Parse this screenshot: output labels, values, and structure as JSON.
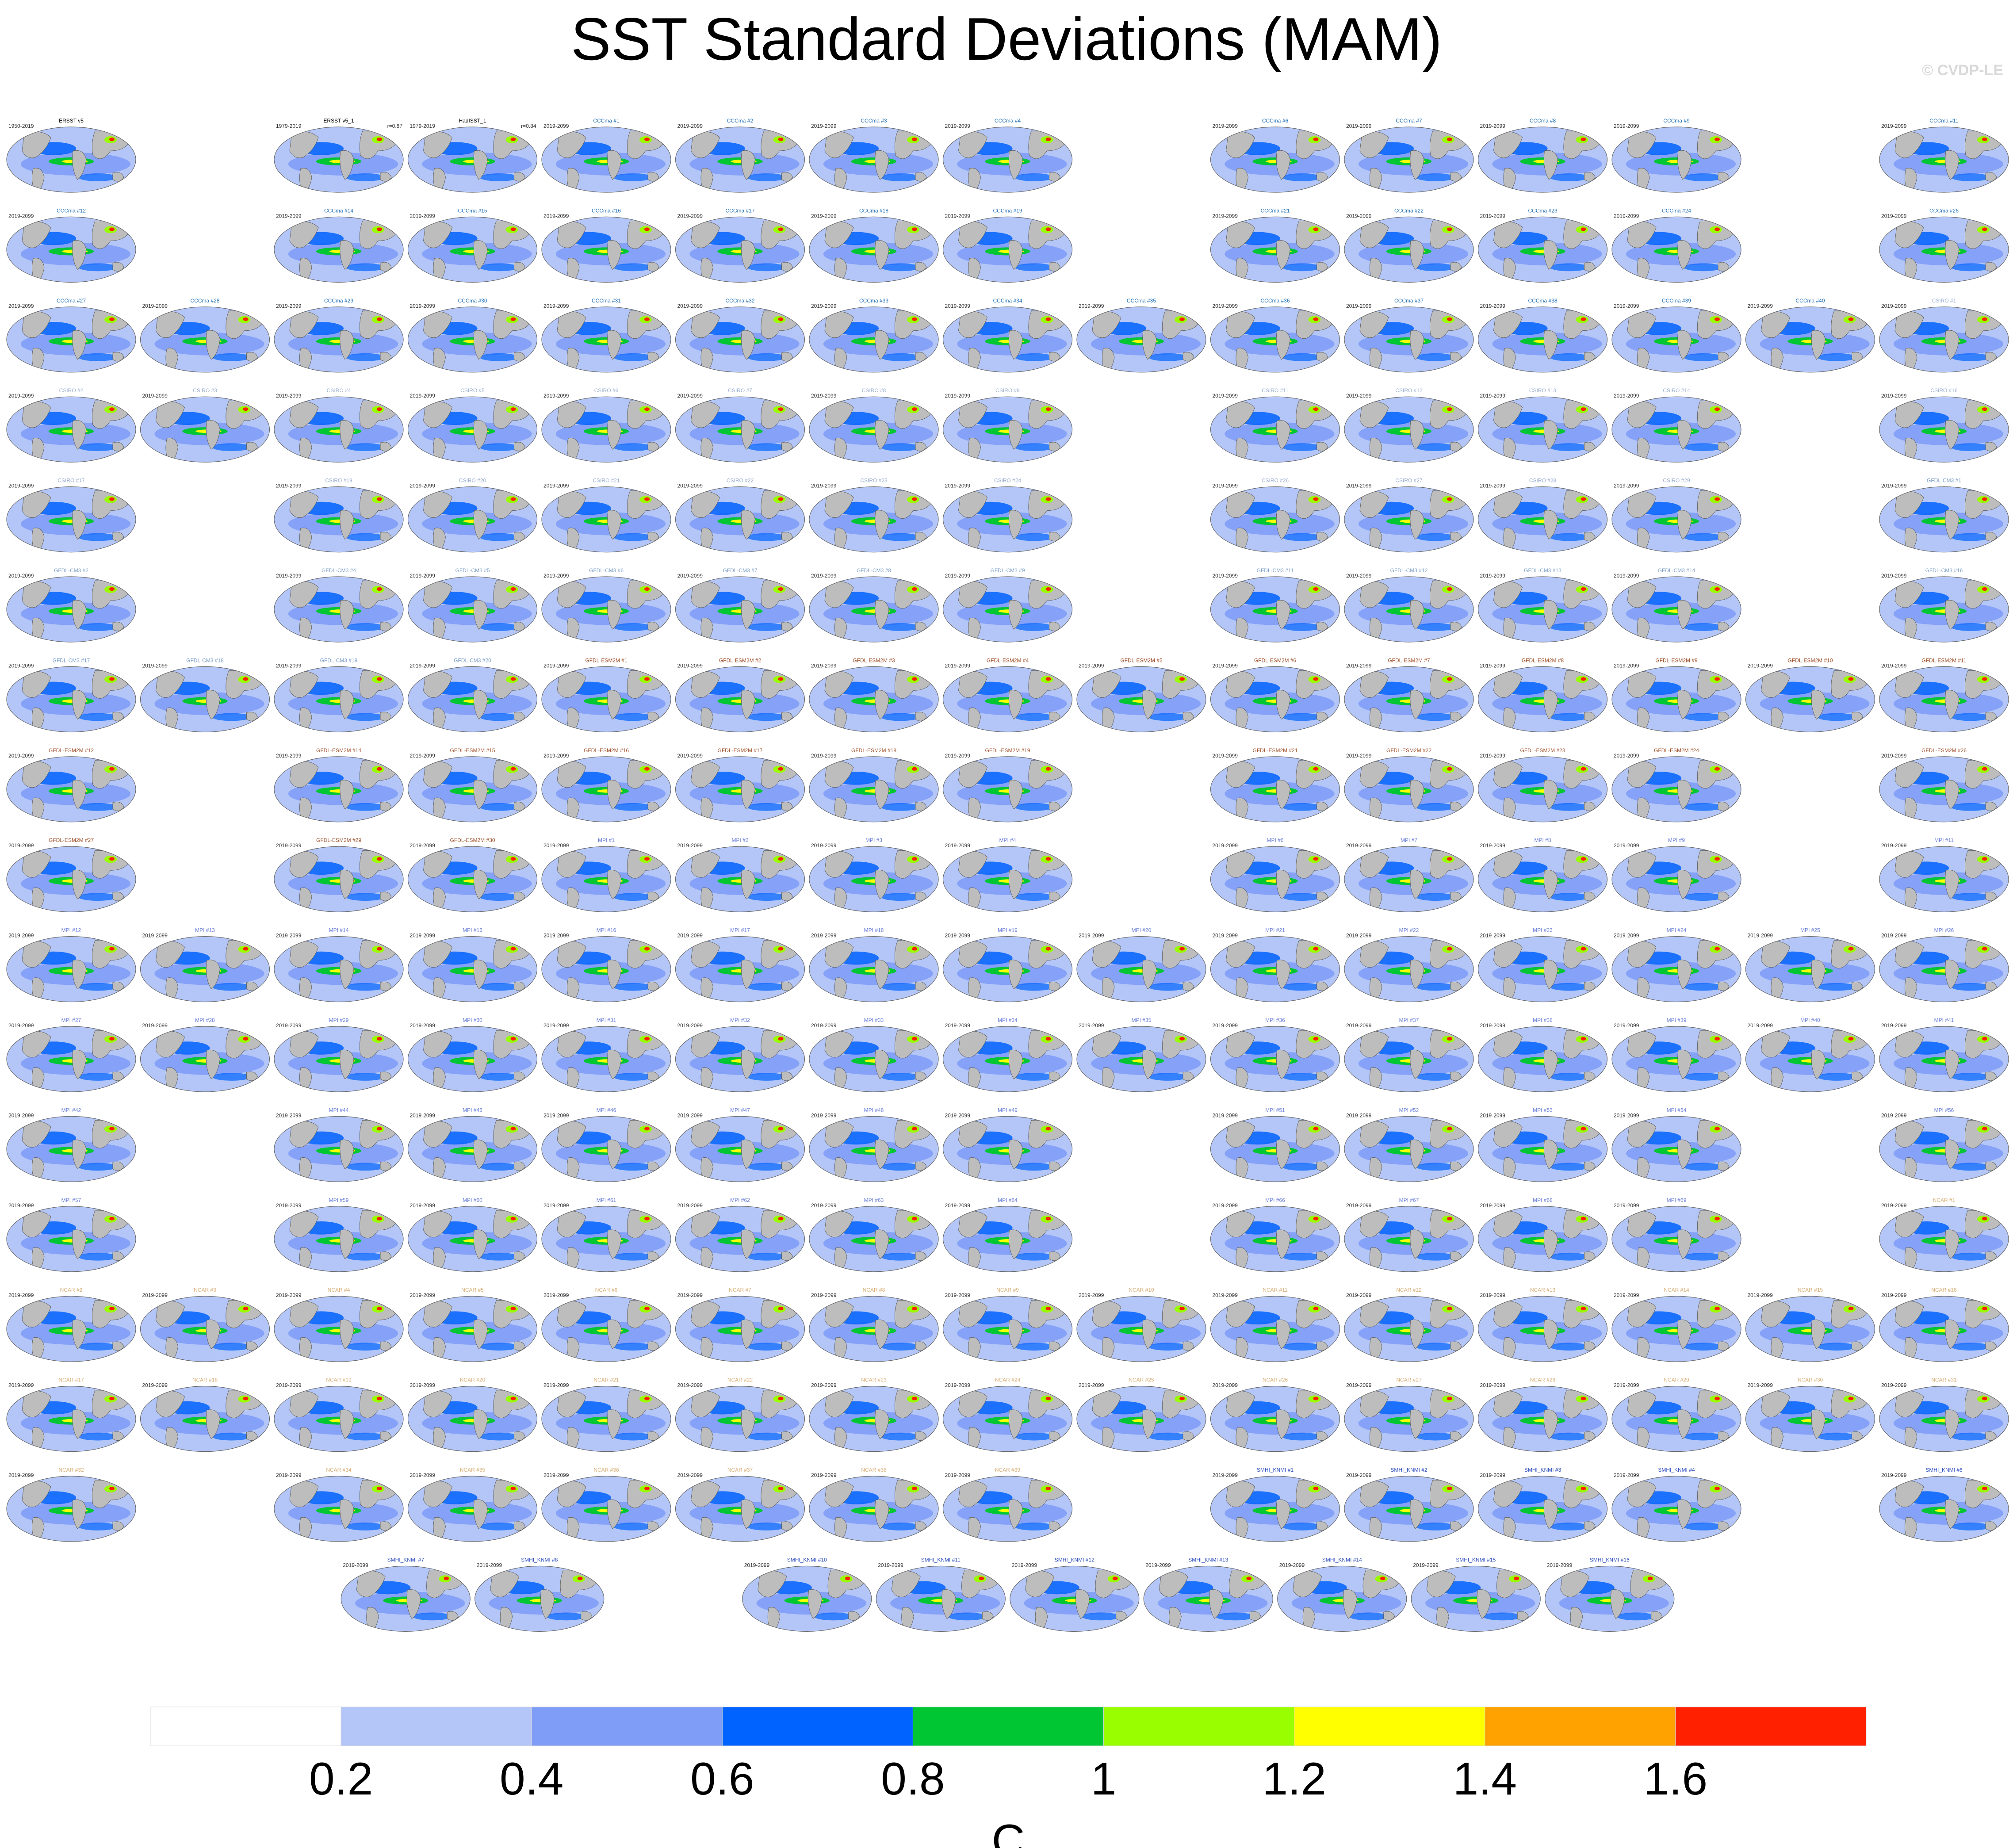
{
  "title": "SST Standard Deviations (MAM)",
  "copyright": "© CVDP-LE",
  "chart_data": {
    "type": "map-panel-grid",
    "title": "SST Standard Deviations (MAM)",
    "colorbar": {
      "units": "C",
      "tick_labels": [
        "0.2",
        "0.4",
        "0.6",
        "0.8",
        "1",
        "1.2",
        "1.4",
        "1.6"
      ],
      "levels": [
        0.2,
        0.4,
        0.6,
        0.8,
        1.0,
        1.2,
        1.4,
        1.6
      ],
      "colors": [
        "#ffffff",
        "#b3c6f7",
        "#7f9cf7",
        "#0062ff",
        "#00c634",
        "#99ff00",
        "#ffff00",
        "#ffa200",
        "#ff2000"
      ]
    },
    "land_color": "#bdbdbd",
    "rows": [
      [
        "ERSST v5",
        null,
        "ERSST v5_1",
        "HadISST_1",
        "CCCma #1",
        "CCCma #2",
        "CCCma #3",
        "CCCma #4",
        null,
        "CCCma #6",
        "CCCma #7",
        "CCCma #8",
        "CCCma #9",
        null,
        "CCCma #11"
      ],
      [
        "CCCma #12",
        null,
        "CCCma #14",
        "CCCma #15",
        "CCCma #16",
        "CCCma #17",
        "CCCma #18",
        "CCCma #19",
        null,
        "CCCma #21",
        "CCCma #22",
        "CCCma #23",
        "CCCma #24",
        null,
        "CCCma #26"
      ],
      [
        "CCCma #27",
        "CCCma #28",
        "CCCma #29",
        "CCCma #30",
        "CCCma #31",
        "CCCma #32",
        "CCCma #33",
        "CCCma #34",
        "CCCma #35",
        "CCCma #36",
        "CCCma #37",
        "CCCma #38",
        "CCCma #39",
        "CCCma #40",
        "CSIRO #1"
      ],
      [
        "CSIRO #2",
        "CSIRO #3",
        "CSIRO #4",
        "CSIRO #5",
        "CSIRO #6",
        "CSIRO #7",
        "CSIRO #8",
        "CSIRO #9",
        null,
        "CSIRO #11",
        "CSIRO #12",
        "CSIRO #13",
        "CSIRO #14",
        null,
        "CSIRO #16"
      ],
      [
        "CSIRO #17",
        null,
        "CSIRO #19",
        "CSIRO #20",
        "CSIRO #21",
        "CSIRO #22",
        "CSIRO #23",
        "CSIRO #24",
        null,
        "CSIRO #26",
        "CSIRO #27",
        "CSIRO #28",
        "CSIRO #29",
        null,
        "GFDL-CM3 #1"
      ],
      [
        "GFDL-CM3 #2",
        null,
        "GFDL-CM3 #4",
        "GFDL-CM3 #5",
        "GFDL-CM3 #6",
        "GFDL-CM3 #7",
        "GFDL-CM3 #8",
        "GFDL-CM3 #9",
        null,
        "GFDL-CM3 #11",
        "GFDL-CM3 #12",
        "GFDL-CM3 #13",
        "GFDL-CM3 #14",
        null,
        "GFDL-CM3 #16"
      ],
      [
        "GFDL-CM3 #17",
        "GFDL-CM3 #18",
        "GFDL-CM3 #19",
        "GFDL-CM3 #20",
        "GFDL-ESM2M #1",
        "GFDL-ESM2M #2",
        "GFDL-ESM2M #3",
        "GFDL-ESM2M #4",
        "GFDL-ESM2M #5",
        "GFDL-ESM2M #6",
        "GFDL-ESM2M #7",
        "GFDL-ESM2M #8",
        "GFDL-ESM2M #9",
        "GFDL-ESM2M #10",
        "GFDL-ESM2M #11"
      ],
      [
        "GFDL-ESM2M #12",
        null,
        "GFDL-ESM2M #14",
        "GFDL-ESM2M #15",
        "GFDL-ESM2M #16",
        "GFDL-ESM2M #17",
        "GFDL-ESM2M #18",
        "GFDL-ESM2M #19",
        null,
        "GFDL-ESM2M #21",
        "GFDL-ESM2M #22",
        "GFDL-ESM2M #23",
        "GFDL-ESM2M #24",
        null,
        "GFDL-ESM2M #26"
      ],
      [
        "GFDL-ESM2M #27",
        null,
        "GFDL-ESM2M #29",
        "GFDL-ESM2M #30",
        "MPI #1",
        "MPI #2",
        "MPI #3",
        "MPI #4",
        null,
        "MPI #6",
        "MPI #7",
        "MPI #8",
        "MPI #9",
        null,
        "MPI #11"
      ],
      [
        "MPI #12",
        "MPI #13",
        "MPI #14",
        "MPI #15",
        "MPI #16",
        "MPI #17",
        "MPI #18",
        "MPI #19",
        "MPI #20",
        "MPI #21",
        "MPI #22",
        "MPI #23",
        "MPI #24",
        "MPI #25",
        "MPI #26"
      ],
      [
        "MPI #27",
        "MPI #28",
        "MPI #29",
        "MPI #30",
        "MPI #31",
        "MPI #32",
        "MPI #33",
        "MPI #34",
        "MPI #35",
        "MPI #36",
        "MPI #37",
        "MPI #38",
        "MPI #39",
        "MPI #40",
        "MPI #41"
      ],
      [
        "MPI #42",
        null,
        "MPI #44",
        "MPI #45",
        "MPI #46",
        "MPI #47",
        "MPI #48",
        "MPI #49",
        null,
        "MPI #51",
        "MPI #52",
        "MPI #53",
        "MPI #54",
        null,
        "MPI #56"
      ],
      [
        "MPI #57",
        null,
        "MPI #59",
        "MPI #60",
        "MPI #61",
        "MPI #62",
        "MPI #63",
        "MPI #64",
        null,
        "MPI #66",
        "MPI #67",
        "MPI #68",
        "MPI #69",
        null,
        "NCAR #1"
      ],
      [
        "NCAR #2",
        "NCAR #3",
        "NCAR #4",
        "NCAR #5",
        "NCAR #6",
        "NCAR #7",
        "NCAR #8",
        "NCAR #9",
        "NCAR #10",
        "NCAR #11",
        "NCAR #12",
        "NCAR #13",
        "NCAR #14",
        "NCAR #15",
        "NCAR #16"
      ],
      [
        "NCAR #17",
        "NCAR #18",
        "NCAR #19",
        "NCAR #20",
        "NCAR #21",
        "NCAR #22",
        "NCAR #23",
        "NCAR #24",
        "NCAR #25",
        "NCAR #26",
        "NCAR #27",
        "NCAR #28",
        "NCAR #29",
        "NCAR #30",
        "NCAR #31"
      ],
      [
        "NCAR #32",
        null,
        "NCAR #34",
        "NCAR #35",
        "NCAR #36",
        "NCAR #37",
        "NCAR #38",
        "NCAR #39",
        null,
        "SMHI_KNMI #1",
        "SMHI_KNMI #2",
        "SMHI_KNMI #3",
        "SMHI_KNMI #4",
        null,
        "SMHI_KNMI #6"
      ]
    ],
    "last_row": [
      {
        "col": 2.5,
        "label": "SMHI_KNMI #7"
      },
      {
        "col": 3.5,
        "label": "SMHI_KNMI #8"
      },
      {
        "col": 5.5,
        "label": "SMHI_KNMI #10"
      },
      {
        "col": 6.5,
        "label": "SMHI_KNMI #11"
      },
      {
        "col": 7.5,
        "label": "SMHI_KNMI #12"
      },
      {
        "col": 8.5,
        "label": "SMHI_KNMI #13"
      },
      {
        "col": 9.5,
        "label": "SMHI_KNMI #14"
      },
      {
        "col": 10.5,
        "label": "SMHI_KNMI #15"
      },
      {
        "col": 11.5,
        "label": "SMHI_KNMI #16"
      }
    ],
    "observation_periods": {
      "ERSST v5": "1950-2019",
      "ERSST v5_1": "1979-2019",
      "HadISST_1": "1979-2019"
    },
    "model_period": "2019-2099",
    "pattern_correlations": {
      "ERSST v5_1": "r=0.87",
      "HadISST_1": "r=0.84"
    },
    "group_colors": {
      "ERSST": "#000000",
      "HadISST": "#000000",
      "CCCma": "#1f6fb5",
      "CSIRO": "#9aaed0",
      "GFDL-CM3": "#7d9fc8",
      "GFDL-ESM2M": "#a0522d",
      "MPI": "#6a7fd8",
      "NCAR": "#d9b07a",
      "SMHI_KNMI": "#2f4fbf"
    }
  }
}
